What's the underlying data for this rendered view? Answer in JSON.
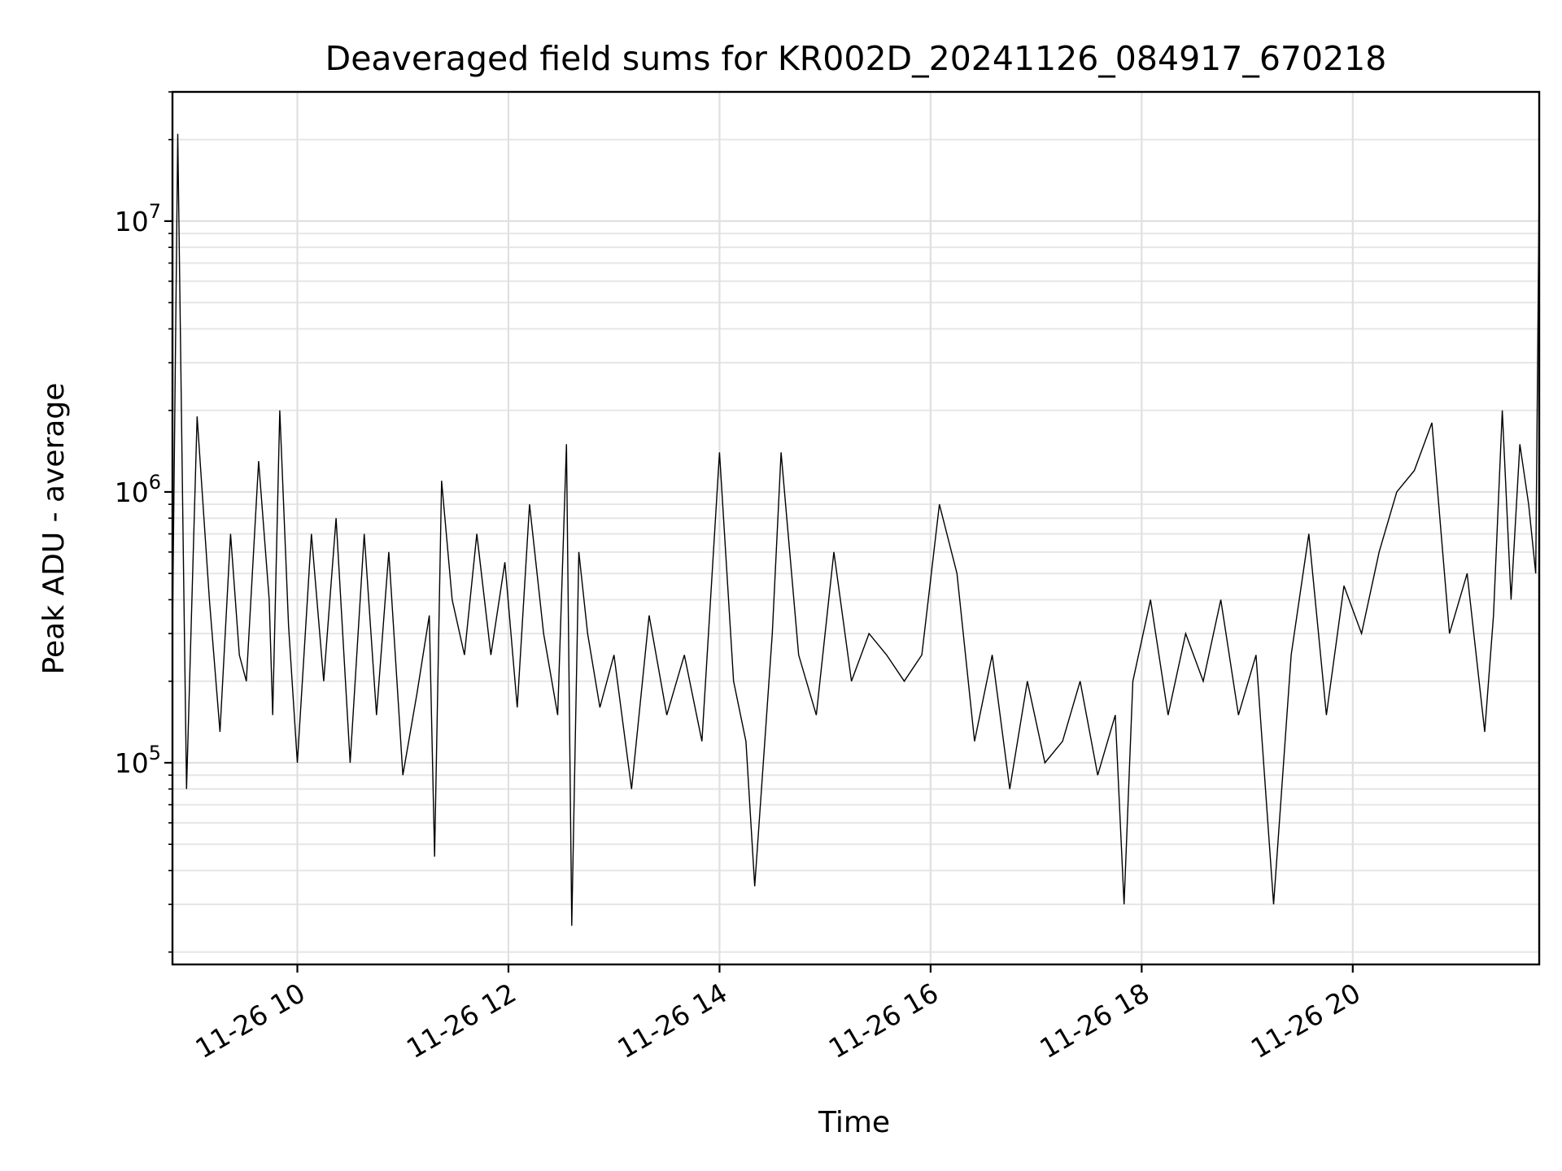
{
  "chart_data": {
    "type": "line",
    "title": "Deaveraged field sums for KR002D_20241126_084917_670218",
    "xlabel": "Time",
    "ylabel": "Peak ADU - average",
    "yscale": "log",
    "grid": true,
    "line_color": "#000000",
    "xlim": [
      "2024-11-26 08:49",
      "2024-11-26 21:46"
    ],
    "ylim": [
      18000,
      30000000
    ],
    "x_ticks": [
      {
        "value": "2024-11-26 10:00",
        "label": "11-26 10"
      },
      {
        "value": "2024-11-26 12:00",
        "label": "11-26 12"
      },
      {
        "value": "2024-11-26 14:00",
        "label": "11-26 14"
      },
      {
        "value": "2024-11-26 16:00",
        "label": "11-26 16"
      },
      {
        "value": "2024-11-26 18:00",
        "label": "11-26 18"
      },
      {
        "value": "2024-11-26 20:00",
        "label": "11-26 20"
      }
    ],
    "y_ticks": [
      {
        "value": 100000,
        "base": "10",
        "exp": "5"
      },
      {
        "value": 1000000,
        "base": "10",
        "exp": "6"
      },
      {
        "value": 10000000,
        "base": "10",
        "exp": "7"
      }
    ],
    "series": [
      {
        "x": [
          "08:49",
          "08:52",
          "08:55",
          "08:57",
          "09:03",
          "09:10",
          "09:16",
          "09:22",
          "09:27",
          "09:31",
          "09:38",
          "09:44",
          "09:46",
          "09:50",
          "09:55",
          "10:00",
          "10:08",
          "10:15",
          "10:22",
          "10:30",
          "10:38",
          "10:45",
          "10:52",
          "11:00",
          "11:08",
          "11:15",
          "11:18",
          "11:22",
          "11:28",
          "11:35",
          "11:42",
          "11:50",
          "11:58",
          "12:05",
          "12:12",
          "12:20",
          "12:28",
          "12:33",
          "12:36",
          "12:40",
          "12:45",
          "12:52",
          "13:00",
          "13:10",
          "13:20",
          "13:30",
          "13:40",
          "13:50",
          "14:00",
          "14:08",
          "14:15",
          "14:20",
          "14:30",
          "14:35",
          "14:45",
          "14:55",
          "15:05",
          "15:15",
          "15:25",
          "15:35",
          "15:45",
          "15:55",
          "16:05",
          "16:15",
          "16:25",
          "16:35",
          "16:45",
          "16:55",
          "17:05",
          "17:15",
          "17:25",
          "17:35",
          "17:45",
          "17:50",
          "17:55",
          "18:05",
          "18:15",
          "18:25",
          "18:35",
          "18:45",
          "18:55",
          "19:05",
          "19:15",
          "19:25",
          "19:35",
          "19:45",
          "19:55",
          "20:05",
          "20:15",
          "20:25",
          "20:35",
          "20:45",
          "20:55",
          "21:05",
          "21:15",
          "21:20",
          "21:25",
          "21:30",
          "21:35",
          "21:40",
          "21:44",
          "21:46"
        ],
        "y": [
          300000,
          21000000,
          700000,
          80000,
          1900000,
          400000,
          130000,
          700000,
          250000,
          200000,
          1300000,
          400000,
          150000,
          2000000,
          320000,
          100000,
          700000,
          200000,
          800000,
          100000,
          700000,
          150000,
          600000,
          90000,
          180000,
          350000,
          45000,
          1100000,
          400000,
          250000,
          700000,
          250000,
          550000,
          160000,
          900000,
          300000,
          150000,
          1500000,
          25000,
          600000,
          300000,
          160000,
          250000,
          80000,
          350000,
          150000,
          250000,
          120000,
          1400000,
          200000,
          120000,
          35000,
          300000,
          1400000,
          250000,
          150000,
          600000,
          200000,
          300000,
          250000,
          200000,
          250000,
          900000,
          500000,
          120000,
          250000,
          80000,
          200000,
          100000,
          120000,
          200000,
          90000,
          150000,
          30000,
          200000,
          400000,
          150000,
          300000,
          200000,
          400000,
          150000,
          250000,
          30000,
          250000,
          700000,
          150000,
          450000,
          300000,
          600000,
          1000000,
          1200000,
          1800000,
          300000,
          500000,
          130000,
          350000,
          2000000,
          400000,
          1500000,
          900000,
          500000,
          14000000
        ]
      }
    ]
  }
}
